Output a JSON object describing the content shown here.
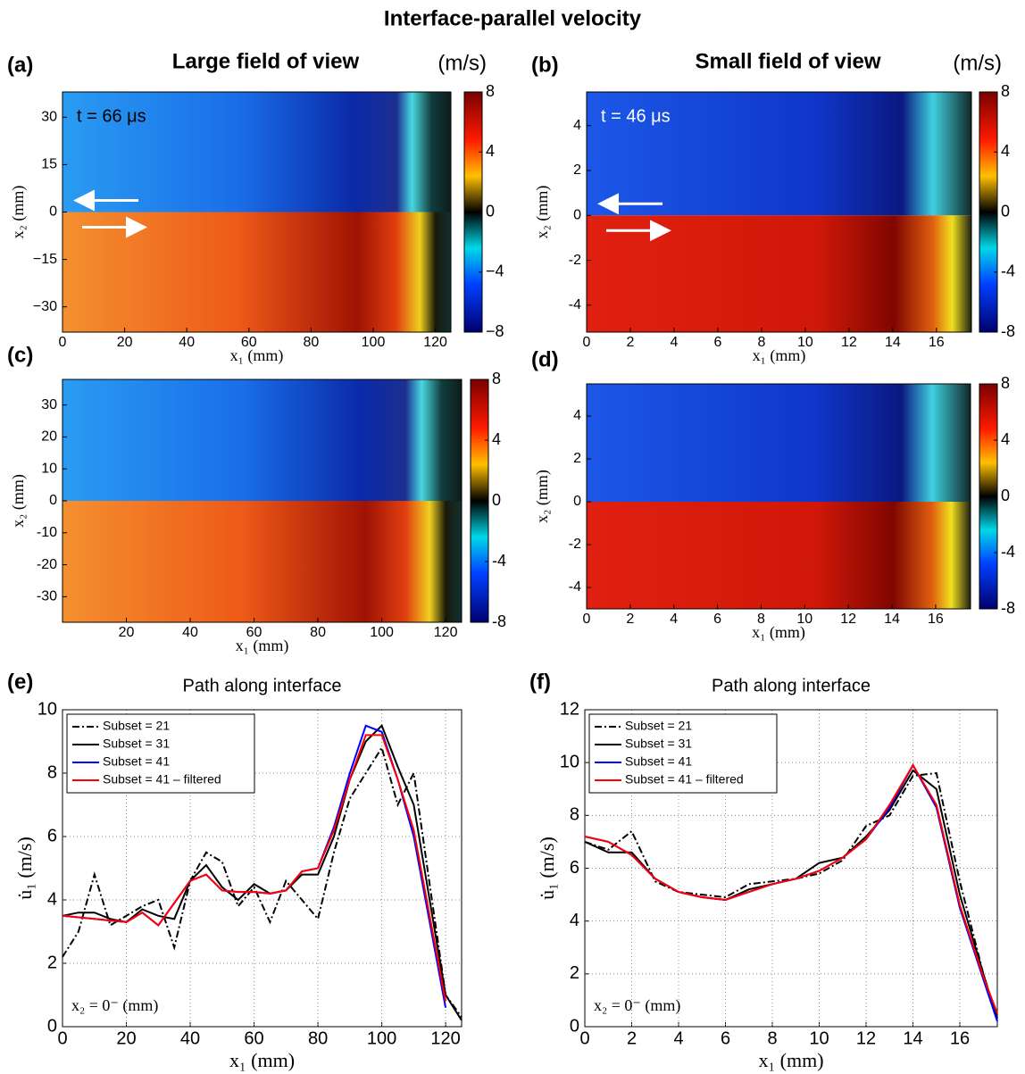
{
  "title": "Interface-parallel velocity",
  "chart_data": [
    {
      "type": "heatmap",
      "panel_label": "(a)",
      "title": "Large field of view",
      "units": "(m/s)",
      "annotation": "t = 66 μs",
      "xlabel": "x₁ (mm)",
      "ylabel": "x₂ (mm)",
      "xlim": [
        0,
        125
      ],
      "xticks": [
        0,
        20,
        40,
        60,
        80,
        100,
        120
      ],
      "ylim": [
        -38,
        38
      ],
      "yticks": [
        {
          "value": -30,
          "label": "−30"
        },
        {
          "value": -15,
          "label": "−15"
        },
        0,
        15,
        30
      ],
      "clim": [
        -8,
        8
      ],
      "cticks": [
        {
          "value": -8,
          "label": "−8"
        },
        {
          "value": -4,
          "label": "−4"
        },
        0,
        4,
        8
      ]
    },
    {
      "type": "heatmap",
      "panel_label": "(b)",
      "title": "Small field of view",
      "units": "(m/s)",
      "annotation": "t = 46 μs",
      "xlabel": "x₁ (mm)",
      "ylabel": "x₂ (mm)",
      "xlim": [
        0,
        17.6
      ],
      "xticks": [
        0,
        2,
        4,
        6,
        8,
        10,
        12,
        14,
        16
      ],
      "ylim": [
        -5.2,
        5.5
      ],
      "yticks": [
        -4,
        -2,
        0,
        2,
        4
      ],
      "clim": [
        -8,
        8
      ],
      "cticks": [
        -8,
        -4,
        0,
        4,
        8
      ]
    },
    {
      "type": "heatmap",
      "panel_label": "(c)",
      "xlabel": "x₁ (mm)",
      "ylabel": "x₂ (mm)",
      "xlim": [
        0,
        125
      ],
      "xticks": [
        20,
        40,
        60,
        80,
        100,
        120
      ],
      "ylim": [
        -38,
        38
      ],
      "yticks": [
        -30,
        -20,
        -10,
        0,
        10,
        20,
        30
      ],
      "clim": [
        -8,
        8
      ],
      "cticks": [
        -8,
        -4,
        0,
        4,
        8
      ]
    },
    {
      "type": "heatmap",
      "panel_label": "(d)",
      "xlabel": "x₁ (mm)",
      "ylabel": "x₂ (mm)",
      "xlim": [
        0,
        17.6
      ],
      "xticks": [
        0,
        2,
        4,
        6,
        8,
        10,
        12,
        14,
        16
      ],
      "ylim": [
        -5,
        5.5
      ],
      "yticks": [
        -4,
        -2,
        0,
        2,
        4
      ],
      "clim": [
        -8,
        8
      ],
      "cticks": [
        -8,
        -4,
        0,
        4,
        8
      ]
    },
    {
      "type": "line",
      "panel_label": "(e)",
      "title": "Path along interface",
      "annotation": "x₂ = 0⁻ (mm)",
      "xlabel": "x₁ (mm)",
      "ylabel": "u̇₁ (m/s)",
      "grid": true,
      "legend": "upper left",
      "xlim": [
        0,
        125
      ],
      "xticks": [
        0,
        20,
        40,
        60,
        80,
        100,
        120
      ],
      "ylim": [
        0,
        10
      ],
      "yticks": [
        0,
        2,
        4,
        6,
        8,
        10
      ],
      "x": [
        0,
        5,
        10,
        15,
        20,
        25,
        30,
        35,
        40,
        45,
        50,
        55,
        60,
        65,
        70,
        75,
        80,
        85,
        90,
        95,
        100,
        105,
        110,
        115,
        120,
        125
      ],
      "series": [
        {
          "name": "Subset = 21",
          "color": "#000000",
          "linestyle": "dashdot",
          "values": [
            2.2,
            3.0,
            4.8,
            3.2,
            3.5,
            3.8,
            4.0,
            2.5,
            4.6,
            5.5,
            5.2,
            3.8,
            4.4,
            3.3,
            4.6,
            4.0,
            3.4,
            5.5,
            7.2,
            8.0,
            8.8,
            7.0,
            8.0,
            4.5,
            1.0,
            0.3
          ]
        },
        {
          "name": "Subset = 31",
          "color": "#000000",
          "linestyle": "solid",
          "values": [
            3.5,
            3.6,
            3.6,
            3.4,
            3.3,
            3.7,
            3.5,
            3.4,
            4.6,
            5.1,
            4.4,
            4.0,
            4.5,
            4.2,
            4.3,
            4.8,
            4.8,
            6.0,
            7.8,
            9.0,
            9.5,
            8.2,
            7.0,
            4.0,
            1.0,
            0.2
          ]
        },
        {
          "name": "Subset = 41",
          "color": "#0000ff",
          "linestyle": "solid",
          "values": [
            3.5,
            3.45,
            3.4,
            3.35,
            3.3,
            3.6,
            3.2,
            3.9,
            4.6,
            4.8,
            4.3,
            4.25,
            4.25,
            4.2,
            4.3,
            4.9,
            5.0,
            6.3,
            8.0,
            9.5,
            9.3,
            7.8,
            6.0,
            3.3,
            0.6,
            null
          ]
        },
        {
          "name": "Subset = 41 – filtered",
          "color": "#ff0000",
          "linestyle": "solid",
          "values": [
            3.5,
            3.45,
            3.4,
            3.35,
            3.3,
            3.6,
            3.2,
            3.9,
            4.6,
            4.8,
            4.3,
            4.25,
            4.25,
            4.2,
            4.3,
            4.9,
            5.0,
            6.2,
            7.8,
            9.2,
            9.2,
            7.8,
            6.2,
            3.5,
            0.8,
            null
          ]
        }
      ]
    },
    {
      "type": "line",
      "panel_label": "(f)",
      "title": "Path along interface",
      "annotation": "x₂ = 0⁻ (mm)",
      "xlabel": "x₁ (mm)",
      "ylabel": "u̇₁ (m/s)",
      "grid": true,
      "legend": "upper left",
      "xlim": [
        0,
        17.6
      ],
      "xticks": [
        0,
        2,
        4,
        6,
        8,
        10,
        12,
        14,
        16
      ],
      "ylim": [
        0,
        12
      ],
      "yticks": [
        0,
        2,
        4,
        6,
        8,
        10,
        12
      ],
      "x": [
        0,
        1,
        2,
        3,
        4,
        5,
        6,
        7,
        8,
        9,
        10,
        11,
        12,
        13,
        14,
        15,
        16,
        17,
        17.6
      ],
      "series": [
        {
          "name": "Subset = 21",
          "color": "#000000",
          "linestyle": "dashdot",
          "values": [
            7.0,
            6.7,
            7.4,
            5.5,
            5.1,
            5.0,
            4.9,
            5.4,
            5.5,
            5.6,
            5.8,
            6.3,
            7.6,
            8.0,
            9.5,
            9.6,
            5.5,
            2.0,
            0.3
          ]
        },
        {
          "name": "Subset = 31",
          "color": "#000000",
          "linestyle": "solid",
          "values": [
            7.0,
            6.6,
            6.6,
            5.6,
            5.1,
            4.9,
            4.8,
            5.2,
            5.4,
            5.6,
            6.2,
            6.4,
            7.2,
            8.2,
            9.7,
            9.0,
            5.0,
            2.0,
            0.3
          ]
        },
        {
          "name": "Subset = 41",
          "color": "#0000ff",
          "linestyle": "solid",
          "values": [
            7.2,
            7.0,
            6.5,
            5.6,
            5.1,
            4.9,
            4.8,
            5.1,
            5.4,
            5.6,
            5.9,
            6.4,
            7.1,
            8.3,
            9.9,
            8.3,
            4.5,
            1.8,
            0.2
          ]
        },
        {
          "name": "Subset = 41 – filtered",
          "color": "#ff0000",
          "linestyle": "solid",
          "values": [
            7.2,
            7.0,
            6.5,
            5.6,
            5.1,
            4.9,
            4.8,
            5.1,
            5.4,
            5.6,
            5.9,
            6.4,
            7.1,
            8.4,
            9.9,
            8.4,
            4.6,
            1.9,
            0.5
          ]
        }
      ]
    }
  ]
}
